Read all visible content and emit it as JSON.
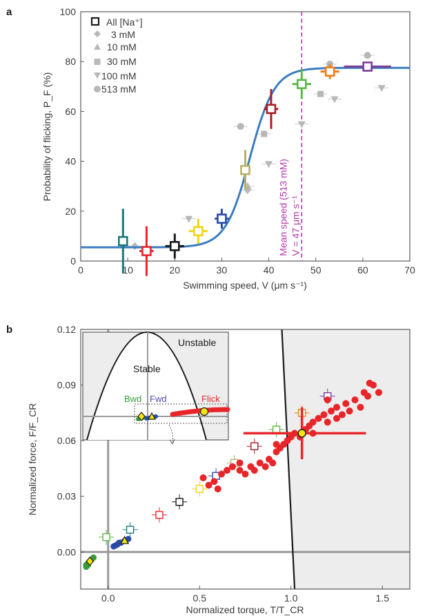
{
  "chart_data": [
    {
      "panel": "a",
      "type": "scatter",
      "xlabel": "Swimming speed, V (μm s⁻¹)",
      "ylabel": "Probability of flicking, P_F (%)",
      "xlim": [
        0,
        70
      ],
      "ylim": [
        0,
        100
      ],
      "x_ticks": [
        "0",
        "10",
        "20",
        "30",
        "40",
        "50",
        "60",
        "70"
      ],
      "y_ticks": [
        "0",
        "20",
        "40",
        "60",
        "80",
        "100"
      ],
      "legend_position": "top-left",
      "legend": [
        "All [Na⁺]",
        "3 mM",
        "10 mM",
        "30 mM",
        "100 mM",
        "513 mM"
      ],
      "all_points": [
        {
          "x": 9,
          "y": 8,
          "xerr": 0.8,
          "yerr": 13,
          "color": "#1a7a7a"
        },
        {
          "x": 14,
          "y": 4,
          "xerr": 1.5,
          "yerr": 10,
          "color": "#e8262a"
        },
        {
          "x": 20,
          "y": 6,
          "xerr": 2,
          "yerr": 5,
          "color": "#1a1a1a"
        },
        {
          "x": 25,
          "y": 12,
          "xerr": 2,
          "yerr": 5,
          "color": "#f2d60c"
        },
        {
          "x": 30,
          "y": 17,
          "xerr": 1.5,
          "yerr": 4,
          "color": "#2b4aa8"
        },
        {
          "x": 35,
          "y": 36.5,
          "xerr": 1,
          "yerr": 8,
          "color": "#b8b066"
        },
        {
          "x": 40.5,
          "y": 61,
          "xerr": 1.5,
          "yerr": 8,
          "color": "#a81f24"
        },
        {
          "x": 47,
          "y": 71,
          "xerr": 2,
          "yerr": 6,
          "color": "#5db846"
        },
        {
          "x": 53,
          "y": 76,
          "xerr": 2,
          "yerr": 3,
          "color": "#ef7d1a"
        },
        {
          "x": 61,
          "y": 78,
          "xerr": 5,
          "yerr": 2,
          "color": "#7a3f99"
        }
      ],
      "subset_points": [
        {
          "x": 11.5,
          "y": 6,
          "marker": "diamond"
        },
        {
          "x": 35.5,
          "y": 30,
          "marker": "triangle"
        },
        {
          "x": 35.5,
          "y": 28.5,
          "marker": "diamond"
        },
        {
          "x": 39,
          "y": 51,
          "marker": "square"
        },
        {
          "x": 51,
          "y": 67,
          "marker": "square"
        },
        {
          "x": 53,
          "y": 79,
          "marker": "circle"
        },
        {
          "x": 61,
          "y": 82.5,
          "marker": "circle"
        },
        {
          "x": 34,
          "y": 54,
          "marker": "circle"
        },
        {
          "x": 23,
          "y": 17,
          "marker": "triangle-down"
        },
        {
          "x": 40,
          "y": 39,
          "marker": "triangle-down"
        },
        {
          "x": 47,
          "y": 55,
          "marker": "triangle-down"
        },
        {
          "x": 54,
          "y": 65,
          "marker": "triangle-down"
        },
        {
          "x": 64,
          "y": 69.5,
          "marker": "triangle-down"
        }
      ],
      "fit_curve": {
        "type": "sigmoid",
        "baseline": 5.5,
        "plateau": 77.5,
        "midpoint": 36,
        "slope": 2.6
      },
      "mean_speed_line": {
        "x": 47,
        "label_line1": "Mean speed (513 mM)",
        "label_line2": "V = 47 μm s⁻¹"
      }
    },
    {
      "panel": "b",
      "type": "scatter",
      "xlabel": "Normalized torque, T/T_CR",
      "ylabel": "Normalized force, F/F_CR",
      "xlim": [
        -0.15,
        1.65
      ],
      "ylim": [
        -0.02,
        0.12
      ],
      "x_ticks": [
        "0.0",
        "0.5",
        "1.0",
        "1.5"
      ],
      "y_ticks": [
        "0.00",
        "0.03",
        "0.06",
        "0.09",
        "0.12"
      ],
      "red_dots": [
        [
          0.52,
          0.04
        ],
        [
          0.55,
          0.036
        ],
        [
          0.58,
          0.038
        ],
        [
          0.6,
          0.034
        ],
        [
          0.62,
          0.042
        ],
        [
          0.65,
          0.044
        ],
        [
          0.68,
          0.046
        ],
        [
          0.72,
          0.044
        ],
        [
          0.75,
          0.042
        ],
        [
          0.78,
          0.046
        ],
        [
          0.8,
          0.044
        ],
        [
          0.83,
          0.048
        ],
        [
          0.86,
          0.046
        ],
        [
          0.88,
          0.05
        ],
        [
          0.9,
          0.048
        ],
        [
          0.92,
          0.054
        ],
        [
          0.94,
          0.056
        ],
        [
          0.96,
          0.058
        ],
        [
          0.98,
          0.06
        ],
        [
          1.0,
          0.062
        ],
        [
          1.02,
          0.064
        ],
        [
          1.05,
          0.062
        ],
        [
          1.08,
          0.066
        ],
        [
          1.1,
          0.068
        ],
        [
          1.12,
          0.07
        ],
        [
          1.15,
          0.072
        ],
        [
          1.18,
          0.074
        ],
        [
          1.2,
          0.07
        ],
        [
          1.22,
          0.076
        ],
        [
          1.25,
          0.078
        ],
        [
          1.28,
          0.074
        ],
        [
          1.3,
          0.08
        ],
        [
          1.32,
          0.076
        ],
        [
          1.35,
          0.082
        ],
        [
          1.38,
          0.078
        ],
        [
          1.4,
          0.086
        ],
        [
          1.42,
          0.084
        ],
        [
          1.45,
          0.09
        ],
        [
          1.48,
          0.086
        ],
        [
          1.2,
          0.082
        ],
        [
          1.12,
          0.064
        ],
        [
          0.72,
          0.048
        ],
        [
          0.92,
          0.058
        ],
        [
          1.25,
          0.072
        ],
        [
          1.43,
          0.091
        ]
      ],
      "highlight_point": {
        "x": 1.06,
        "y": 0.064,
        "xerr_left": 0.32,
        "xerr_right": 0.35,
        "yerr": 0.014,
        "color": "#e8262a"
      },
      "open_squares": [
        {
          "x": -0.01,
          "y": 0.008,
          "color": "#5db846"
        },
        {
          "x": 0.12,
          "y": 0.012,
          "color": "#1a7a7a"
        },
        {
          "x": 0.28,
          "y": 0.02,
          "color": "#e8262a"
        },
        {
          "x": 0.39,
          "y": 0.027,
          "color": "#1a1a1a"
        },
        {
          "x": 0.5,
          "y": 0.034,
          "color": "#f2d60c"
        },
        {
          "x": 0.59,
          "y": 0.041,
          "color": "#2b4aa8"
        },
        {
          "x": 0.69,
          "y": 0.048,
          "color": "#b8b066"
        },
        {
          "x": 0.8,
          "y": 0.057,
          "color": "#a81f24"
        },
        {
          "x": 0.92,
          "y": 0.066,
          "color": "#5db846"
        },
        {
          "x": 1.06,
          "y": 0.075,
          "color": "#ef7d1a"
        },
        {
          "x": 1.2,
          "y": 0.084,
          "color": "#7a3f99"
        }
      ],
      "green_cluster": [
        [
          -0.12,
          -0.007
        ],
        [
          -0.11,
          -0.006
        ],
        [
          -0.1,
          -0.005
        ],
        [
          -0.09,
          -0.004
        ],
        [
          -0.08,
          -0.003
        ],
        [
          -0.12,
          -0.008
        ],
        [
          -0.11,
          -0.007
        ]
      ],
      "blue_cluster": [
        [
          0.03,
          0.003
        ],
        [
          0.05,
          0.004
        ],
        [
          0.07,
          0.005
        ],
        [
          0.09,
          0.006
        ],
        [
          0.11,
          0.007
        ],
        [
          0.04,
          0.0035
        ],
        [
          0.06,
          0.005
        ]
      ],
      "bwd_marker": {
        "x": -0.1,
        "y": -0.005
      },
      "fwd_marker": {
        "x": 0.09,
        "y": 0.006
      },
      "boundary_line": [
        [
          0.95,
          0.12
        ],
        [
          1.02,
          -0.02
        ]
      ],
      "inset": {
        "unstable_label": "Unstable",
        "stable_label": "Stable",
        "bwd_label": "Bwd",
        "fwd_label": "Fwd",
        "flick_label": "Flick",
        "bwd_color": "#3a9b3a",
        "fwd_color": "#4a4ab0",
        "flick_color": "#e8262a"
      }
    }
  ]
}
